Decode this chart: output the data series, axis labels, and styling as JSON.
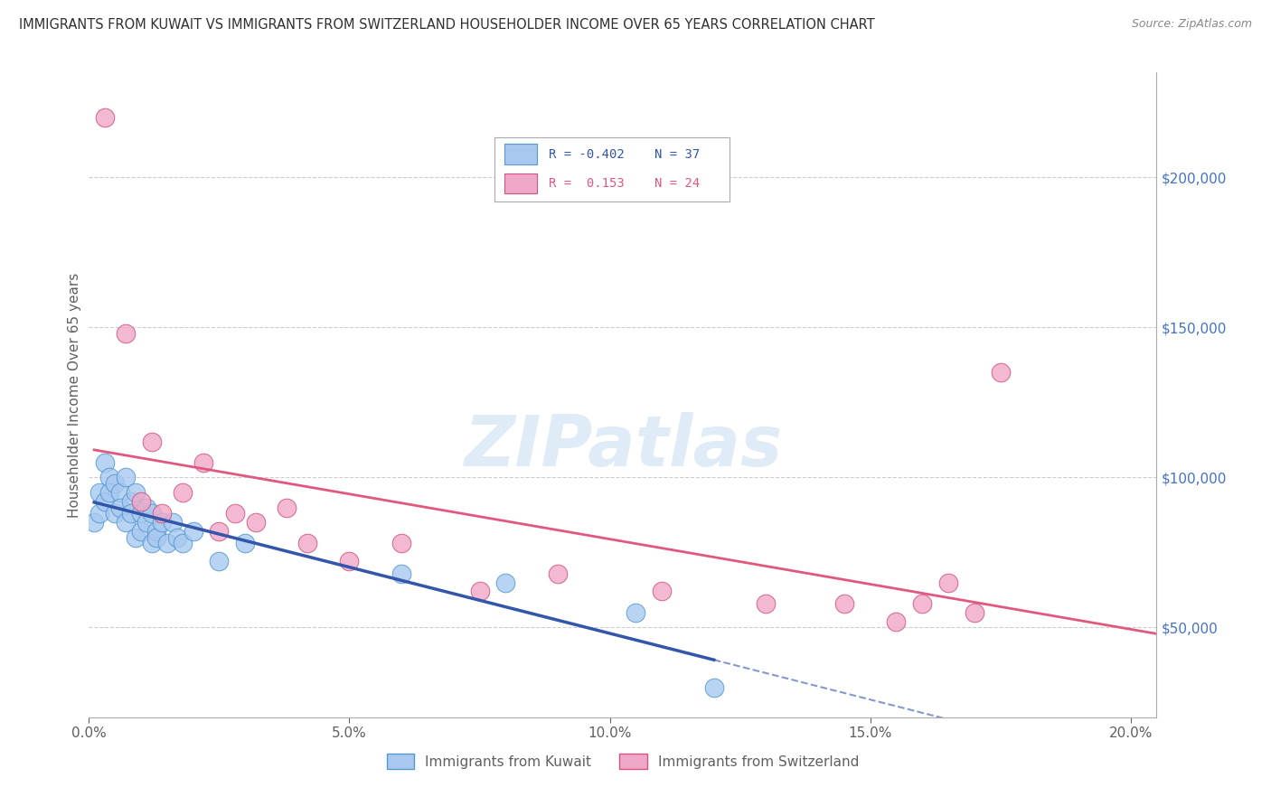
{
  "title": "IMMIGRANTS FROM KUWAIT VS IMMIGRANTS FROM SWITZERLAND HOUSEHOLDER INCOME OVER 65 YEARS CORRELATION CHART",
  "source": "Source: ZipAtlas.com",
  "ylabel": "Householder Income Over 65 years",
  "xlabel_ticks": [
    "0.0%",
    "5.0%",
    "10.0%",
    "15.0%",
    "20.0%"
  ],
  "xlabel_vals": [
    0.0,
    0.05,
    0.1,
    0.15,
    0.2
  ],
  "ylabel_ticks": [
    "$50,000",
    "$100,000",
    "$150,000",
    "$200,000"
  ],
  "ylabel_vals": [
    50000,
    100000,
    150000,
    200000
  ],
  "xlim": [
    0.0,
    0.205
  ],
  "ylim": [
    20000,
    235000
  ],
  "watermark": "ZIPatlas",
  "kuwait_color": "#a8c8f0",
  "kuwait_edge": "#5599d0",
  "switzerland_color": "#f0a8c8",
  "switzerland_edge": "#d05580",
  "kuwait_line_color": "#3355aa",
  "switzerland_line_color": "#e05880",
  "grid_color": "#cccccc",
  "background_color": "#ffffff",
  "title_color": "#303030",
  "source_color": "#888888",
  "axis_label_color": "#606060",
  "tick_color": "#606060",
  "right_tick_color": "#4472c4",
  "kuwait_scatter_x": [
    0.001,
    0.002,
    0.002,
    0.003,
    0.003,
    0.004,
    0.004,
    0.005,
    0.005,
    0.006,
    0.006,
    0.007,
    0.007,
    0.008,
    0.008,
    0.009,
    0.009,
    0.01,
    0.01,
    0.011,
    0.011,
    0.012,
    0.012,
    0.013,
    0.013,
    0.014,
    0.015,
    0.016,
    0.017,
    0.018,
    0.02,
    0.025,
    0.03,
    0.06,
    0.08,
    0.105,
    0.12
  ],
  "kuwait_scatter_y": [
    85000,
    95000,
    88000,
    105000,
    92000,
    100000,
    95000,
    98000,
    88000,
    95000,
    90000,
    100000,
    85000,
    92000,
    88000,
    95000,
    80000,
    88000,
    82000,
    90000,
    85000,
    88000,
    78000,
    82000,
    80000,
    85000,
    78000,
    85000,
    80000,
    78000,
    82000,
    72000,
    78000,
    68000,
    65000,
    55000,
    30000
  ],
  "switzerland_scatter_x": [
    0.003,
    0.007,
    0.01,
    0.012,
    0.014,
    0.018,
    0.022,
    0.025,
    0.028,
    0.032,
    0.038,
    0.042,
    0.05,
    0.06,
    0.075,
    0.09,
    0.11,
    0.13,
    0.145,
    0.155,
    0.16,
    0.17,
    0.165,
    0.175
  ],
  "switzerland_scatter_y": [
    220000,
    148000,
    92000,
    112000,
    88000,
    95000,
    105000,
    82000,
    88000,
    85000,
    90000,
    78000,
    72000,
    78000,
    62000,
    68000,
    62000,
    58000,
    58000,
    52000,
    58000,
    55000,
    65000,
    135000
  ],
  "kuwait_line_x_start": 0.001,
  "kuwait_line_x_solid_end": 0.12,
  "kuwait_line_x_dash_end": 0.205,
  "switzerland_line_x_start": 0.001,
  "switzerland_line_x_end": 0.205
}
